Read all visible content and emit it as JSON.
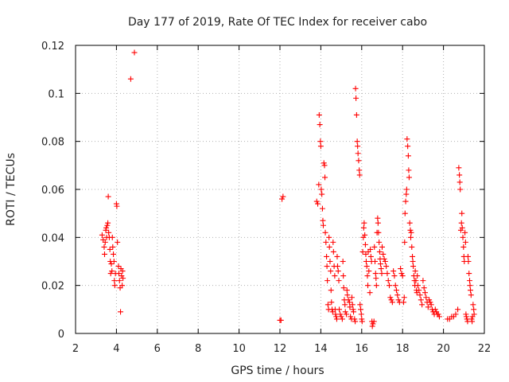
{
  "chart_data": {
    "type": "scatter",
    "title": "Day 177 of 2019, Rate Of TEC Index for receiver cabo",
    "xlabel": "GPS time / hours",
    "ylabel": "ROTI / TECUs",
    "xlim": [
      2,
      22
    ],
    "ylim": [
      0,
      0.12
    ],
    "x_ticks": [
      2,
      4,
      6,
      8,
      10,
      12,
      14,
      16,
      18,
      20,
      22
    ],
    "x_tick_labels": [
      "2",
      "4",
      "6",
      "8",
      "10",
      "12",
      "14",
      "16",
      "18",
      "20",
      "22"
    ],
    "y_ticks": [
      0,
      0.02,
      0.04,
      0.06,
      0.08,
      0.1,
      0.12
    ],
    "y_tick_labels": [
      "0",
      "0.02",
      "0.04",
      "0.06",
      "0.08",
      "0.1",
      "0.12"
    ],
    "grid": true,
    "marker": "+",
    "color": "#ff0000",
    "series": [
      {
        "name": "ROTI",
        "points": [
          [
            3.3,
            0.041
          ],
          [
            3.35,
            0.039
          ],
          [
            3.4,
            0.036
          ],
          [
            3.42,
            0.033
          ],
          [
            3.45,
            0.038
          ],
          [
            3.48,
            0.043
          ],
          [
            3.5,
            0.044
          ],
          [
            3.52,
            0.04
          ],
          [
            3.55,
            0.045
          ],
          [
            3.58,
            0.046
          ],
          [
            3.6,
            0.057
          ],
          [
            3.62,
            0.042
          ],
          [
            3.65,
            0.04
          ],
          [
            3.68,
            0.035
          ],
          [
            3.7,
            0.03
          ],
          [
            3.72,
            0.025
          ],
          [
            3.75,
            0.029
          ],
          [
            3.78,
            0.026
          ],
          [
            3.8,
            0.04
          ],
          [
            3.82,
            0.036
          ],
          [
            3.85,
            0.033
          ],
          [
            3.88,
            0.03
          ],
          [
            3.9,
            0.022
          ],
          [
            3.92,
            0.02
          ],
          [
            3.95,
            0.025
          ],
          [
            4.0,
            0.054
          ],
          [
            4.02,
            0.053
          ],
          [
            4.05,
            0.038
          ],
          [
            4.1,
            0.028
          ],
          [
            4.12,
            0.025
          ],
          [
            4.15,
            0.022
          ],
          [
            4.18,
            0.019
          ],
          [
            4.2,
            0.009
          ],
          [
            4.22,
            0.027
          ],
          [
            4.25,
            0.024
          ],
          [
            4.28,
            0.02
          ],
          [
            4.3,
            0.026
          ],
          [
            4.32,
            0.023
          ],
          [
            4.7,
            0.106
          ],
          [
            4.88,
            0.117
          ],
          [
            12.0,
            0.0055
          ],
          [
            12.05,
            0.0055
          ],
          [
            12.1,
            0.056
          ],
          [
            12.15,
            0.057
          ],
          [
            13.8,
            0.055
          ],
          [
            13.85,
            0.054
          ],
          [
            13.9,
            0.062
          ],
          [
            13.92,
            0.091
          ],
          [
            13.95,
            0.087
          ],
          [
            13.98,
            0.08
          ],
          [
            14.0,
            0.078
          ],
          [
            14.02,
            0.06
          ],
          [
            14.05,
            0.058
          ],
          [
            14.08,
            0.052
          ],
          [
            14.1,
            0.047
          ],
          [
            14.12,
            0.045
          ],
          [
            14.15,
            0.071
          ],
          [
            14.18,
            0.07
          ],
          [
            14.2,
            0.065
          ],
          [
            14.22,
            0.042
          ],
          [
            14.25,
            0.038
          ],
          [
            14.28,
            0.032
          ],
          [
            14.3,
            0.028
          ],
          [
            14.32,
            0.022
          ],
          [
            14.35,
            0.012
          ],
          [
            14.38,
            0.01
          ],
          [
            14.4,
            0.04
          ],
          [
            14.42,
            0.036
          ],
          [
            14.45,
            0.03
          ],
          [
            14.48,
            0.026
          ],
          [
            14.5,
            0.018
          ],
          [
            14.52,
            0.013
          ],
          [
            14.55,
            0.01
          ],
          [
            14.58,
            0.009
          ],
          [
            14.6,
            0.038
          ],
          [
            14.62,
            0.034
          ],
          [
            14.65,
            0.028
          ],
          [
            14.68,
            0.024
          ],
          [
            14.7,
            0.01
          ],
          [
            14.72,
            0.008
          ],
          [
            14.75,
            0.007
          ],
          [
            14.78,
            0.006
          ],
          [
            14.8,
            0.032
          ],
          [
            14.82,
            0.028
          ],
          [
            14.85,
            0.026
          ],
          [
            14.88,
            0.022
          ],
          [
            14.9,
            0.01
          ],
          [
            14.95,
            0.008
          ],
          [
            15.0,
            0.007
          ],
          [
            15.05,
            0.006
          ],
          [
            15.08,
            0.03
          ],
          [
            15.1,
            0.024
          ],
          [
            15.12,
            0.019
          ],
          [
            15.15,
            0.014
          ],
          [
            15.18,
            0.012
          ],
          [
            15.2,
            0.009
          ],
          [
            15.25,
            0.008
          ],
          [
            15.28,
            0.018
          ],
          [
            15.3,
            0.016
          ],
          [
            15.35,
            0.014
          ],
          [
            15.4,
            0.013
          ],
          [
            15.42,
            0.011
          ],
          [
            15.45,
            0.007
          ],
          [
            15.5,
            0.006
          ],
          [
            15.52,
            0.015
          ],
          [
            15.55,
            0.012
          ],
          [
            15.58,
            0.01
          ],
          [
            15.6,
            0.009
          ],
          [
            15.65,
            0.006
          ],
          [
            15.68,
            0.005
          ],
          [
            15.7,
            0.102
          ],
          [
            15.72,
            0.098
          ],
          [
            15.75,
            0.091
          ],
          [
            15.78,
            0.08
          ],
          [
            15.8,
            0.078
          ],
          [
            15.82,
            0.075
          ],
          [
            15.85,
            0.072
          ],
          [
            15.88,
            0.068
          ],
          [
            15.9,
            0.066
          ],
          [
            15.92,
            0.012
          ],
          [
            15.95,
            0.01
          ],
          [
            15.98,
            0.008
          ],
          [
            16.0,
            0.006
          ],
          [
            16.02,
            0.005
          ],
          [
            16.05,
            0.034
          ],
          [
            16.08,
            0.04
          ],
          [
            16.1,
            0.044
          ],
          [
            16.12,
            0.046
          ],
          [
            16.15,
            0.041
          ],
          [
            16.18,
            0.037
          ],
          [
            16.2,
            0.033
          ],
          [
            16.22,
            0.03
          ],
          [
            16.25,
            0.028
          ],
          [
            16.28,
            0.024
          ],
          [
            16.3,
            0.02
          ],
          [
            16.32,
            0.034
          ],
          [
            16.35,
            0.026
          ],
          [
            16.4,
            0.017
          ],
          [
            16.42,
            0.035
          ],
          [
            16.45,
            0.032
          ],
          [
            16.48,
            0.03
          ],
          [
            16.5,
            0.005
          ],
          [
            16.52,
            0.003
          ],
          [
            16.55,
            0.004
          ],
          [
            16.6,
            0.005
          ],
          [
            16.62,
            0.036
          ],
          [
            16.65,
            0.03
          ],
          [
            16.68,
            0.025
          ],
          [
            16.7,
            0.023
          ],
          [
            16.72,
            0.02
          ],
          [
            16.75,
            0.042
          ],
          [
            16.78,
            0.048
          ],
          [
            16.8,
            0.046
          ],
          [
            16.82,
            0.042
          ],
          [
            16.85,
            0.038
          ],
          [
            16.88,
            0.034
          ],
          [
            16.9,
            0.031
          ],
          [
            16.92,
            0.029
          ],
          [
            16.95,
            0.027
          ],
          [
            16.98,
            0.025
          ],
          [
            17.0,
            0.036
          ],
          [
            17.05,
            0.033
          ],
          [
            17.1,
            0.031
          ],
          [
            17.15,
            0.03
          ],
          [
            17.2,
            0.028
          ],
          [
            17.25,
            0.025
          ],
          [
            17.3,
            0.022
          ],
          [
            17.35,
            0.02
          ],
          [
            17.4,
            0.015
          ],
          [
            17.45,
            0.014
          ],
          [
            17.5,
            0.013
          ],
          [
            17.55,
            0.026
          ],
          [
            17.6,
            0.024
          ],
          [
            17.65,
            0.02
          ],
          [
            17.7,
            0.018
          ],
          [
            17.75,
            0.016
          ],
          [
            17.8,
            0.014
          ],
          [
            17.85,
            0.013
          ],
          [
            17.9,
            0.027
          ],
          [
            17.95,
            0.025
          ],
          [
            18.0,
            0.024
          ],
          [
            18.05,
            0.013
          ],
          [
            18.08,
            0.015
          ],
          [
            18.1,
            0.038
          ],
          [
            18.12,
            0.05
          ],
          [
            18.15,
            0.055
          ],
          [
            18.18,
            0.058
          ],
          [
            18.2,
            0.06
          ],
          [
            18.22,
            0.081
          ],
          [
            18.25,
            0.078
          ],
          [
            18.28,
            0.074
          ],
          [
            18.3,
            0.068
          ],
          [
            18.32,
            0.065
          ],
          [
            18.35,
            0.046
          ],
          [
            18.38,
            0.043
          ],
          [
            18.4,
            0.04
          ],
          [
            18.42,
            0.042
          ],
          [
            18.45,
            0.036
          ],
          [
            18.48,
            0.032
          ],
          [
            18.5,
            0.03
          ],
          [
            18.52,
            0.028
          ],
          [
            18.55,
            0.024
          ],
          [
            18.58,
            0.022
          ],
          [
            18.6,
            0.02
          ],
          [
            18.62,
            0.026
          ],
          [
            18.65,
            0.022
          ],
          [
            18.68,
            0.018
          ],
          [
            18.7,
            0.017
          ],
          [
            18.72,
            0.024
          ],
          [
            18.75,
            0.02
          ],
          [
            18.8,
            0.018
          ],
          [
            18.85,
            0.016
          ],
          [
            18.9,
            0.014
          ],
          [
            18.95,
            0.012
          ],
          [
            19.0,
            0.022
          ],
          [
            19.05,
            0.019
          ],
          [
            19.1,
            0.017
          ],
          [
            19.15,
            0.015
          ],
          [
            19.2,
            0.013
          ],
          [
            19.25,
            0.011
          ],
          [
            19.3,
            0.014
          ],
          [
            19.35,
            0.013
          ],
          [
            19.4,
            0.012
          ],
          [
            19.45,
            0.01
          ],
          [
            19.5,
            0.009
          ],
          [
            19.55,
            0.008
          ],
          [
            19.6,
            0.01
          ],
          [
            19.65,
            0.009
          ],
          [
            19.7,
            0.008
          ],
          [
            19.75,
            0.008
          ],
          [
            19.8,
            0.007
          ],
          [
            20.2,
            0.006
          ],
          [
            20.3,
            0.006
          ],
          [
            20.4,
            0.007
          ],
          [
            20.5,
            0.007
          ],
          [
            20.6,
            0.008
          ],
          [
            20.7,
            0.01
          ],
          [
            20.75,
            0.069
          ],
          [
            20.78,
            0.066
          ],
          [
            20.8,
            0.063
          ],
          [
            20.82,
            0.06
          ],
          [
            20.85,
            0.043
          ],
          [
            20.88,
            0.046
          ],
          [
            20.9,
            0.05
          ],
          [
            20.92,
            0.044
          ],
          [
            20.95,
            0.04
          ],
          [
            20.98,
            0.036
          ],
          [
            21.0,
            0.032
          ],
          [
            21.02,
            0.03
          ],
          [
            21.05,
            0.042
          ],
          [
            21.08,
            0.038
          ],
          [
            21.1,
            0.008
          ],
          [
            21.12,
            0.007
          ],
          [
            21.15,
            0.006
          ],
          [
            21.18,
            0.005
          ],
          [
            21.2,
            0.032
          ],
          [
            21.22,
            0.03
          ],
          [
            21.25,
            0.025
          ],
          [
            21.28,
            0.022
          ],
          [
            21.3,
            0.02
          ],
          [
            21.32,
            0.018
          ],
          [
            21.35,
            0.016
          ],
          [
            21.38,
            0.006
          ],
          [
            21.4,
            0.005
          ],
          [
            21.42,
            0.007
          ],
          [
            21.45,
            0.012
          ],
          [
            21.48,
            0.01
          ],
          [
            21.5,
            0.008
          ]
        ]
      }
    ]
  }
}
